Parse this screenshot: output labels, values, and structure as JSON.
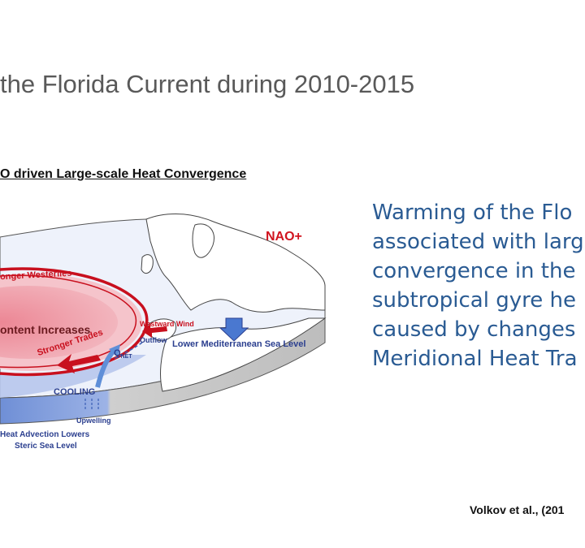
{
  "slide": {
    "title": "the Florida Current during 2010-2015",
    "figure_heading": "O driven Large-scale Heat Convergence",
    "citation": "Volkov et al., (201"
  },
  "diagram": {
    "labels": {
      "nao": "NAO+",
      "westerlies": "onger Westerlies",
      "content": "ontent Increases",
      "westward_wind": "Westward Wind",
      "outflow": "Outflow",
      "med_sea": "Lower Mediterranean Sea Level",
      "trades": "Stronger Trades",
      "qnet": "Q",
      "qnet_sub": "NET",
      "cooling": "COOLING",
      "upwelling": "Upwelling",
      "advection_line1": "Heat Advection Lowers",
      "advection_line2": "Steric Sea Level"
    },
    "colors": {
      "ocean_warm": "#f2b6bf",
      "ocean_warm_core": "#e98391",
      "arrow_red": "#c8101e",
      "cool_blue": "#8fa8de",
      "label_blue": "#2b3f8f",
      "land": "#ffffff",
      "slab_side": "#cfcfcf"
    }
  },
  "summary": {
    "lines": [
      "Warming of the Flo",
      "associated with larg",
      "convergence in the",
      "subtropical gyre he",
      "caused by changes",
      "Meridional Heat Tra"
    ]
  }
}
